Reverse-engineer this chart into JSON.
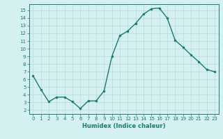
{
  "x": [
    0,
    1,
    2,
    3,
    4,
    5,
    6,
    7,
    8,
    9,
    10,
    11,
    12,
    13,
    14,
    15,
    16,
    17,
    18,
    19,
    20,
    21,
    22,
    23
  ],
  "y": [
    6.5,
    4.7,
    3.1,
    3.7,
    3.7,
    3.1,
    2.2,
    3.2,
    3.2,
    4.5,
    9.0,
    11.7,
    12.3,
    13.3,
    14.5,
    15.2,
    15.3,
    14.0,
    11.1,
    10.2,
    9.2,
    8.3,
    7.3,
    7.0
  ],
  "line_color": "#1a7a6e",
  "marker": "o",
  "marker_size": 2.0,
  "line_width": 1.0,
  "bg_color": "#d4f0f0",
  "grid_color": "#b8d8d8",
  "xlabel": "Humidex (Indice chaleur)",
  "xlim": [
    -0.5,
    23.5
  ],
  "ylim": [
    1.5,
    15.8
  ],
  "yticks": [
    2,
    3,
    4,
    5,
    6,
    7,
    8,
    9,
    10,
    11,
    12,
    13,
    14,
    15
  ],
  "xticks": [
    0,
    1,
    2,
    3,
    4,
    5,
    6,
    7,
    8,
    9,
    10,
    11,
    12,
    13,
    14,
    15,
    16,
    17,
    18,
    19,
    20,
    21,
    22,
    23
  ],
  "tick_color": "#1a7a6e",
  "label_color": "#1a7a6e",
  "axis_color": "#1a7a6e",
  "xlabel_fontsize": 6.0,
  "tick_fontsize": 5.0
}
